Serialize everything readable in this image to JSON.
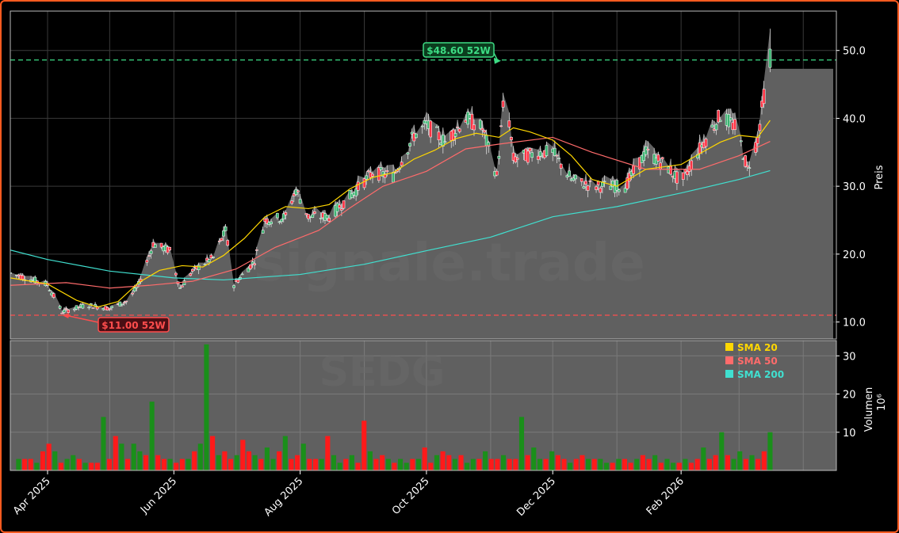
{
  "chart_data": {
    "type": "candlestick",
    "ticker": "SEDG",
    "watermark": "signale.trade",
    "x_tick_labels": [
      "Apr 2025",
      "Jun 2025",
      "Aug 2025",
      "Oct 2025",
      "Dec 2025",
      "Feb 2026"
    ],
    "x_tick_dates": [
      "2025-04-01",
      "2025-06-01",
      "2025-08-01",
      "2025-10-01",
      "2025-12-01",
      "2026-02-01"
    ],
    "x_range": [
      "2025-03-14",
      "2026-04-17"
    ],
    "price_axis": {
      "label": "Preis",
      "ticks": [
        "10.0",
        "20.0",
        "30.0",
        "40.0",
        "50.0"
      ],
      "tick_values": [
        10,
        20,
        30,
        40,
        50
      ],
      "range": [
        7.5,
        55.8
      ]
    },
    "volume_axis": {
      "label": "Volumen",
      "unit": "10⁶",
      "ticks": [
        "10",
        "20",
        "30"
      ],
      "tick_values": [
        10,
        20,
        30
      ],
      "range": [
        0,
        34
      ]
    },
    "high_52w": {
      "label": "$48.60 52W",
      "value": 48.6,
      "date": "2025-11-06",
      "color": "#3ddc84"
    },
    "low_52w": {
      "label": "$11.00 52W",
      "value": 11.0,
      "date": "2025-04-08",
      "color": "#ff4d4d"
    },
    "legend": [
      {
        "name": "SMA 20",
        "color": "#ffd700"
      },
      {
        "name": "SMA 50",
        "color": "#ff6b6b"
      },
      {
        "name": "SMA 200",
        "color": "#40e0d0"
      }
    ],
    "up_color": "#3cb371",
    "down_color": "#ff3344",
    "sma20": [
      [
        "2025-03-14",
        16.5
      ],
      [
        "2025-04-01",
        15.6
      ],
      [
        "2025-04-15",
        13.2
      ],
      [
        "2025-04-25",
        12.2
      ],
      [
        "2025-05-05",
        13.0
      ],
      [
        "2025-05-15",
        15.8
      ],
      [
        "2025-05-25",
        17.6
      ],
      [
        "2025-06-05",
        18.3
      ],
      [
        "2025-06-15",
        18.1
      ],
      [
        "2025-06-25",
        19.8
      ],
      [
        "2025-07-05",
        22.3
      ],
      [
        "2025-07-15",
        25.5
      ],
      [
        "2025-07-25",
        27.0
      ],
      [
        "2025-08-05",
        26.7
      ],
      [
        "2025-08-15",
        27.3
      ],
      [
        "2025-08-25",
        29.6
      ],
      [
        "2025-09-05",
        31.3
      ],
      [
        "2025-09-15",
        32.0
      ],
      [
        "2025-09-25",
        34.0
      ],
      [
        "2025-10-05",
        35.3
      ],
      [
        "2025-10-15",
        37.0
      ],
      [
        "2025-10-25",
        37.8
      ],
      [
        "2025-11-05",
        37.2
      ],
      [
        "2025-11-12",
        38.6
      ],
      [
        "2025-11-20",
        38.0
      ],
      [
        "2025-12-01",
        36.8
      ],
      [
        "2025-12-10",
        34.5
      ],
      [
        "2025-12-20",
        31.0
      ],
      [
        "2026-01-01",
        30.0
      ],
      [
        "2026-01-15",
        32.5
      ],
      [
        "2026-02-01",
        33.2
      ],
      [
        "2026-02-10",
        34.8
      ],
      [
        "2026-02-20",
        36.5
      ],
      [
        "2026-03-01",
        37.5
      ],
      [
        "2026-03-10",
        37.2
      ],
      [
        "2026-03-16",
        39.7
      ]
    ],
    "sma50": [
      [
        "2025-03-14",
        15.4
      ],
      [
        "2025-04-10",
        15.8
      ],
      [
        "2025-05-01",
        15.0
      ],
      [
        "2025-05-20",
        15.4
      ],
      [
        "2025-06-10",
        16.0
      ],
      [
        "2025-07-01",
        17.8
      ],
      [
        "2025-07-20",
        21.0
      ],
      [
        "2025-08-10",
        23.5
      ],
      [
        "2025-08-25",
        26.8
      ],
      [
        "2025-09-10",
        30.0
      ],
      [
        "2025-10-01",
        32.2
      ],
      [
        "2025-10-20",
        35.5
      ],
      [
        "2025-11-05",
        36.2
      ],
      [
        "2025-12-01",
        37.2
      ],
      [
        "2025-12-20",
        35.0
      ],
      [
        "2026-01-15",
        32.5
      ],
      [
        "2026-02-10",
        32.5
      ],
      [
        "2026-03-01",
        34.5
      ],
      [
        "2026-03-16",
        36.6
      ]
    ],
    "sma200": [
      [
        "2025-03-14",
        20.6
      ],
      [
        "2025-04-01",
        19.2
      ],
      [
        "2025-05-01",
        17.5
      ],
      [
        "2025-06-01",
        16.5
      ],
      [
        "2025-06-25",
        16.2
      ],
      [
        "2025-08-01",
        17.0
      ],
      [
        "2025-09-01",
        18.5
      ],
      [
        "2025-10-01",
        20.5
      ],
      [
        "2025-11-01",
        22.5
      ],
      [
        "2025-12-01",
        25.5
      ],
      [
        "2026-01-01",
        27.0
      ],
      [
        "2026-02-01",
        29.0
      ],
      [
        "2026-03-01",
        31.0
      ],
      [
        "2026-03-16",
        32.3
      ]
    ],
    "candle_path": [
      [
        "2025-03-14",
        17.2
      ],
      [
        "2025-03-25",
        16.2
      ],
      [
        "2025-04-01",
        15.5
      ],
      [
        "2025-04-08",
        11.5
      ],
      [
        "2025-04-20",
        12.5
      ],
      [
        "2025-05-01",
        12.0
      ],
      [
        "2025-05-10",
        13.2
      ],
      [
        "2025-05-15",
        15.5
      ],
      [
        "2025-05-22",
        21.5
      ],
      [
        "2025-05-30",
        20.5
      ],
      [
        "2025-06-04",
        15.0
      ],
      [
        "2025-06-10",
        17.5
      ],
      [
        "2025-06-20",
        19.5
      ],
      [
        "2025-06-26",
        23.5
      ],
      [
        "2025-06-30",
        15.5
      ],
      [
        "2025-07-10",
        19.0
      ],
      [
        "2025-07-15",
        25.0
      ],
      [
        "2025-07-25",
        25.5
      ],
      [
        "2025-07-30",
        29.5
      ],
      [
        "2025-08-05",
        25.5
      ],
      [
        "2025-08-15",
        25.5
      ],
      [
        "2025-08-25",
        28.5
      ],
      [
        "2025-09-05",
        32.0
      ],
      [
        "2025-09-15",
        31.5
      ],
      [
        "2025-09-25",
        37.5
      ],
      [
        "2025-10-01",
        39.0
      ],
      [
        "2025-10-10",
        36.5
      ],
      [
        "2025-10-20",
        40.0
      ],
      [
        "2025-10-28",
        38.5
      ],
      [
        "2025-11-04",
        31.5
      ],
      [
        "2025-11-08",
        45.0
      ],
      [
        "2025-11-12",
        34.0
      ],
      [
        "2025-11-25",
        35.0
      ],
      [
        "2025-12-01",
        35.0
      ],
      [
        "2025-12-10",
        31.0
      ],
      [
        "2025-12-20",
        30.0
      ],
      [
        "2026-01-05",
        30.0
      ],
      [
        "2026-01-15",
        35.0
      ],
      [
        "2026-01-25",
        33.0
      ],
      [
        "2026-02-01",
        30.5
      ],
      [
        "2026-02-10",
        35.5
      ],
      [
        "2026-02-20",
        40.5
      ],
      [
        "2026-02-28",
        38.5
      ],
      [
        "2026-03-05",
        32.5
      ],
      [
        "2026-03-10",
        37.0
      ],
      [
        "2026-03-16",
        50.0
      ]
    ],
    "volume_millions": [
      3,
      3,
      3,
      2,
      5,
      7,
      5,
      2,
      3,
      4,
      3,
      2,
      2,
      2,
      14,
      3,
      9,
      7,
      3,
      7,
      5,
      4,
      18,
      4,
      3,
      3,
      2,
      3,
      3,
      5,
      7,
      33,
      9,
      4,
      5,
      3,
      4,
      8,
      5,
      4,
      3,
      6,
      3,
      5,
      9,
      3,
      4,
      7,
      3,
      3,
      3,
      9,
      4,
      2,
      3,
      4,
      2,
      13,
      5,
      3,
      4,
      3,
      2,
      3,
      2,
      3,
      3,
      6,
      2,
      4,
      5,
      4,
      3,
      4,
      2,
      3,
      3,
      5,
      3,
      3,
      4,
      3,
      3,
      14,
      4,
      6,
      3,
      3,
      5,
      4,
      3,
      2,
      3,
      4,
      3,
      3,
      3,
      2,
      2,
      3,
      3,
      2,
      3,
      4,
      3,
      4,
      2,
      3,
      2,
      2,
      3,
      2,
      3,
      6,
      3,
      4,
      10,
      4,
      3,
      5,
      3,
      4,
      3,
      5,
      10
    ]
  }
}
